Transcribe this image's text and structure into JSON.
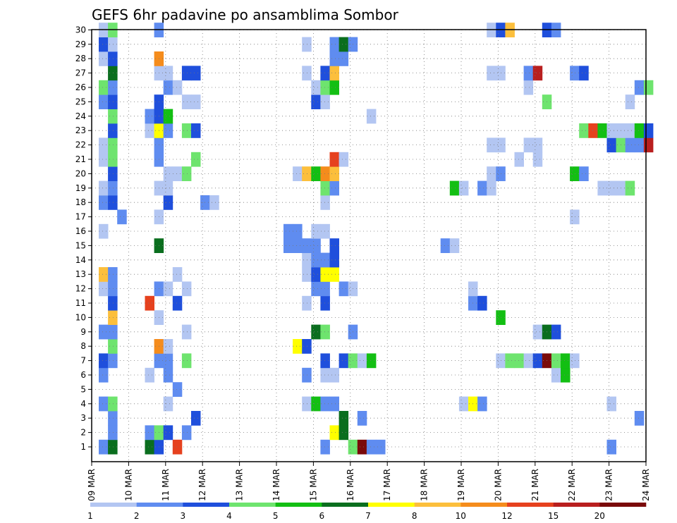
{
  "chart_data": {
    "type": "heatmap",
    "title": "GEFS 6hr padavine po ansamblima Sombor",
    "x_tick_labels": [
      "09 MAR",
      "10 MAR",
      "11 MAR",
      "12 MAR",
      "13 MAR",
      "14 MAR",
      "15 MAR",
      "16 MAR",
      "17 MAR",
      "18 MAR",
      "19 MAR",
      "20 MAR",
      "21 MAR",
      "22 MAR",
      "23 MAR",
      "24 MAR"
    ],
    "y_tick_labels": [
      "1",
      "2",
      "3",
      "4",
      "5",
      "6",
      "7",
      "8",
      "9",
      "10",
      "11",
      "12",
      "13",
      "14",
      "15",
      "16",
      "17",
      "18",
      "19",
      "20",
      "21",
      "22",
      "23",
      "24",
      "25",
      "26",
      "27",
      "28",
      "29",
      "30"
    ],
    "grid": true,
    "colorbar": {
      "labels": [
        "1",
        "2",
        "3",
        "4",
        "5",
        "6",
        "7",
        "8",
        "10",
        "12",
        "15",
        "20"
      ],
      "bin_colors": [
        "#b3c6f2",
        "#5f8cf0",
        "#1f4fdc",
        "#6ee46e",
        "#13bf13",
        "#0a6e1e",
        "#ffff00",
        "#fcbf3c",
        "#f58c1c",
        "#e6411e",
        "#b91f1f",
        "#7a0a0a"
      ]
    },
    "cells": [
      [
        1,
        0,
        1
      ],
      [
        1,
        1,
        5
      ],
      [
        1,
        5,
        5
      ],
      [
        1,
        6,
        2
      ],
      [
        1,
        8,
        9
      ],
      [
        1,
        24,
        1
      ],
      [
        1,
        27,
        3
      ],
      [
        1,
        28,
        11
      ],
      [
        1,
        29,
        1
      ],
      [
        1,
        30,
        1
      ],
      [
        1,
        55,
        1
      ],
      [
        2,
        1,
        1
      ],
      [
        2,
        5,
        1
      ],
      [
        2,
        6,
        3
      ],
      [
        2,
        7,
        2
      ],
      [
        2,
        9,
        1
      ],
      [
        2,
        25,
        6
      ],
      [
        2,
        26,
        5
      ],
      [
        3,
        1,
        1
      ],
      [
        3,
        10,
        2
      ],
      [
        3,
        26,
        5
      ],
      [
        3,
        28,
        1
      ],
      [
        3,
        58,
        1
      ],
      [
        4,
        0,
        1
      ],
      [
        4,
        1,
        3
      ],
      [
        4,
        7,
        0
      ],
      [
        4,
        22,
        0
      ],
      [
        4,
        23,
        4
      ],
      [
        4,
        24,
        1
      ],
      [
        4,
        25,
        1
      ],
      [
        4,
        39,
        0
      ],
      [
        4,
        40,
        6
      ],
      [
        4,
        41,
        1
      ],
      [
        4,
        55,
        0
      ],
      [
        5,
        8,
        1
      ],
      [
        6,
        0,
        1
      ],
      [
        6,
        5,
        0
      ],
      [
        6,
        7,
        1
      ],
      [
        6,
        22,
        1
      ],
      [
        6,
        24,
        0
      ],
      [
        6,
        25,
        0
      ],
      [
        6,
        49,
        0
      ],
      [
        6,
        50,
        4
      ],
      [
        7,
        0,
        2
      ],
      [
        7,
        1,
        1
      ],
      [
        7,
        6,
        1
      ],
      [
        7,
        7,
        1
      ],
      [
        7,
        9,
        3
      ],
      [
        7,
        24,
        2
      ],
      [
        7,
        26,
        2
      ],
      [
        7,
        27,
        3
      ],
      [
        7,
        28,
        0
      ],
      [
        7,
        29,
        4
      ],
      [
        7,
        43,
        0
      ],
      [
        7,
        44,
        3
      ],
      [
        7,
        45,
        3
      ],
      [
        7,
        46,
        0
      ],
      [
        7,
        47,
        2
      ],
      [
        7,
        48,
        11
      ],
      [
        7,
        49,
        3
      ],
      [
        7,
        50,
        4
      ],
      [
        7,
        51,
        0
      ],
      [
        8,
        1,
        3
      ],
      [
        8,
        6,
        8
      ],
      [
        8,
        7,
        0
      ],
      [
        8,
        21,
        6
      ],
      [
        8,
        22,
        2
      ],
      [
        9,
        0,
        1
      ],
      [
        9,
        1,
        1
      ],
      [
        9,
        9,
        0
      ],
      [
        9,
        23,
        5
      ],
      [
        9,
        24,
        3
      ],
      [
        9,
        27,
        1
      ],
      [
        9,
        47,
        0
      ],
      [
        9,
        48,
        5
      ],
      [
        9,
        49,
        2
      ],
      [
        10,
        1,
        7
      ],
      [
        10,
        6,
        0
      ],
      [
        10,
        43,
        4
      ],
      [
        11,
        1,
        2
      ],
      [
        11,
        5,
        9
      ],
      [
        11,
        8,
        2
      ],
      [
        11,
        22,
        0
      ],
      [
        11,
        24,
        2
      ],
      [
        11,
        40,
        1
      ],
      [
        11,
        41,
        2
      ],
      [
        12,
        0,
        0
      ],
      [
        12,
        1,
        1
      ],
      [
        12,
        6,
        1
      ],
      [
        12,
        7,
        0
      ],
      [
        12,
        9,
        0
      ],
      [
        12,
        23,
        1
      ],
      [
        12,
        24,
        1
      ],
      [
        12,
        26,
        1
      ],
      [
        12,
        27,
        0
      ],
      [
        12,
        40,
        0
      ],
      [
        13,
        0,
        7
      ],
      [
        13,
        1,
        1
      ],
      [
        13,
        8,
        0
      ],
      [
        13,
        22,
        0
      ],
      [
        13,
        23,
        2
      ],
      [
        13,
        24,
        6
      ],
      [
        13,
        25,
        6
      ],
      [
        14,
        22,
        0
      ],
      [
        14,
        23,
        1
      ],
      [
        14,
        24,
        1
      ],
      [
        14,
        25,
        2
      ],
      [
        15,
        6,
        5
      ],
      [
        15,
        20,
        1
      ],
      [
        15,
        21,
        1
      ],
      [
        15,
        22,
        1
      ],
      [
        15,
        23,
        1
      ],
      [
        15,
        25,
        2
      ],
      [
        15,
        37,
        1
      ],
      [
        15,
        38,
        0
      ],
      [
        16,
        0,
        0
      ],
      [
        16,
        20,
        1
      ],
      [
        16,
        21,
        1
      ],
      [
        16,
        23,
        0
      ],
      [
        16,
        24,
        0
      ],
      [
        17,
        2,
        1
      ],
      [
        17,
        6,
        0
      ],
      [
        17,
        51,
        0
      ],
      [
        18,
        0,
        1
      ],
      [
        18,
        1,
        2
      ],
      [
        18,
        7,
        2
      ],
      [
        18,
        11,
        1
      ],
      [
        18,
        12,
        0
      ],
      [
        18,
        24,
        0
      ],
      [
        19,
        0,
        0
      ],
      [
        19,
        1,
        1
      ],
      [
        19,
        6,
        0
      ],
      [
        19,
        7,
        0
      ],
      [
        19,
        24,
        3
      ],
      [
        19,
        25,
        1
      ],
      [
        19,
        38,
        4
      ],
      [
        19,
        39,
        0
      ],
      [
        19,
        41,
        1
      ],
      [
        19,
        42,
        0
      ],
      [
        19,
        54,
        0
      ],
      [
        19,
        55,
        0
      ],
      [
        19,
        56,
        0
      ],
      [
        19,
        57,
        3
      ],
      [
        20,
        1,
        2
      ],
      [
        20,
        7,
        0
      ],
      [
        20,
        8,
        0
      ],
      [
        20,
        9,
        3
      ],
      [
        20,
        21,
        0
      ],
      [
        20,
        22,
        7
      ],
      [
        20,
        23,
        4
      ],
      [
        20,
        24,
        8
      ],
      [
        20,
        25,
        7
      ],
      [
        20,
        42,
        0
      ],
      [
        20,
        43,
        1
      ],
      [
        20,
        51,
        4
      ],
      [
        20,
        52,
        1
      ],
      [
        21,
        0,
        0
      ],
      [
        21,
        1,
        3
      ],
      [
        21,
        6,
        1
      ],
      [
        21,
        10,
        3
      ],
      [
        21,
        25,
        9
      ],
      [
        21,
        26,
        0
      ],
      [
        21,
        45,
        0
      ],
      [
        21,
        47,
        0
      ],
      [
        22,
        0,
        0
      ],
      [
        22,
        1,
        3
      ],
      [
        22,
        6,
        1
      ],
      [
        22,
        42,
        0
      ],
      [
        22,
        43,
        0
      ],
      [
        22,
        46,
        0
      ],
      [
        22,
        47,
        0
      ],
      [
        22,
        55,
        2
      ],
      [
        22,
        56,
        3
      ],
      [
        22,
        57,
        1
      ],
      [
        22,
        58,
        1
      ],
      [
        22,
        59,
        10
      ],
      [
        23,
        1,
        2
      ],
      [
        23,
        5,
        0
      ],
      [
        23,
        6,
        6
      ],
      [
        23,
        7,
        1
      ],
      [
        23,
        9,
        3
      ],
      [
        23,
        10,
        2
      ],
      [
        23,
        52,
        3
      ],
      [
        23,
        53,
        9
      ],
      [
        23,
        54,
        4
      ],
      [
        23,
        55,
        0
      ],
      [
        23,
        56,
        0
      ],
      [
        23,
        57,
        0
      ],
      [
        23,
        58,
        4
      ],
      [
        23,
        59,
        2
      ],
      [
        24,
        1,
        3
      ],
      [
        24,
        5,
        1
      ],
      [
        24,
        6,
        2
      ],
      [
        24,
        7,
        4
      ],
      [
        24,
        29,
        0
      ],
      [
        25,
        0,
        1
      ],
      [
        25,
        1,
        2
      ],
      [
        25,
        6,
        2
      ],
      [
        25,
        9,
        0
      ],
      [
        25,
        10,
        0
      ],
      [
        25,
        23,
        2
      ],
      [
        25,
        24,
        0
      ],
      [
        25,
        48,
        3
      ],
      [
        25,
        57,
        0
      ],
      [
        26,
        0,
        3
      ],
      [
        26,
        1,
        1
      ],
      [
        26,
        7,
        1
      ],
      [
        26,
        8,
        0
      ],
      [
        26,
        23,
        0
      ],
      [
        26,
        24,
        3
      ],
      [
        26,
        25,
        4
      ],
      [
        26,
        46,
        0
      ],
      [
        26,
        58,
        1
      ],
      [
        26,
        59,
        3
      ],
      [
        27,
        1,
        5
      ],
      [
        27,
        6,
        0
      ],
      [
        27,
        7,
        0
      ],
      [
        27,
        9,
        2
      ],
      [
        27,
        10,
        2
      ],
      [
        27,
        22,
        0
      ],
      [
        27,
        24,
        2
      ],
      [
        27,
        25,
        7
      ],
      [
        27,
        42,
        0
      ],
      [
        27,
        43,
        0
      ],
      [
        27,
        46,
        1
      ],
      [
        27,
        47,
        10
      ],
      [
        27,
        51,
        1
      ],
      [
        27,
        52,
        2
      ],
      [
        28,
        0,
        0
      ],
      [
        28,
        1,
        2
      ],
      [
        28,
        6,
        8
      ],
      [
        28,
        25,
        1
      ],
      [
        28,
        26,
        1
      ],
      [
        29,
        0,
        2
      ],
      [
        29,
        1,
        0
      ],
      [
        29,
        22,
        0
      ],
      [
        29,
        25,
        1
      ],
      [
        29,
        26,
        5
      ],
      [
        29,
        27,
        1
      ],
      [
        30,
        0,
        0
      ],
      [
        30,
        1,
        3
      ],
      [
        30,
        6,
        1
      ],
      [
        30,
        42,
        0
      ],
      [
        30,
        43,
        2
      ],
      [
        30,
        44,
        7
      ],
      [
        30,
        48,
        2
      ],
      [
        30,
        49,
        1
      ]
    ]
  }
}
